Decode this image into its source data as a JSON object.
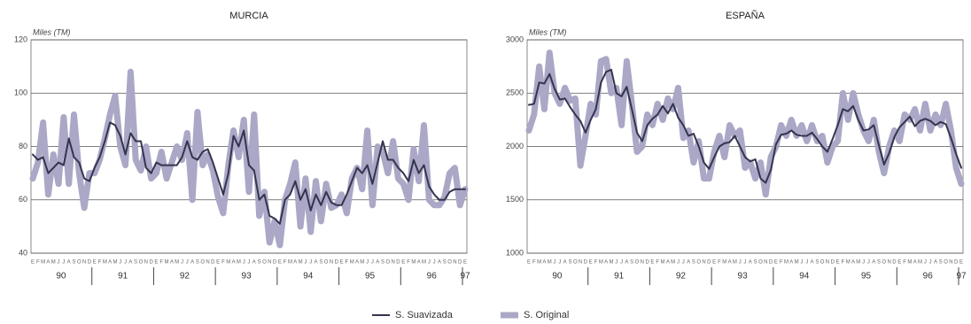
{
  "chart_data": [
    {
      "type": "line",
      "title": "MURCIA",
      "y_label": "Miles (TM)",
      "categories": [
        "E",
        "F",
        "M",
        "A",
        "M",
        "J",
        "J",
        "A",
        "S",
        "O",
        "N",
        "D",
        "E",
        "F",
        "M",
        "A",
        "M",
        "J",
        "J",
        "A",
        "S",
        "O",
        "N",
        "D",
        "E",
        "F",
        "M",
        "A",
        "M",
        "J",
        "J",
        "A",
        "S",
        "O",
        "N",
        "D",
        "E",
        "F",
        "M",
        "A",
        "M",
        "J",
        "J",
        "A",
        "S",
        "O",
        "N",
        "D",
        "E",
        "F",
        "M",
        "A",
        "M",
        "J",
        "J",
        "A",
        "S",
        "O",
        "N",
        "D",
        "E",
        "F",
        "M",
        "A",
        "M",
        "J",
        "J",
        "A",
        "S",
        "O",
        "N",
        "D",
        "E",
        "F",
        "M",
        "A",
        "M",
        "J",
        "J",
        "A",
        "S",
        "O",
        "N",
        "D",
        "E"
      ],
      "years": [
        "90",
        "91",
        "92",
        "93",
        "94",
        "95",
        "96",
        "97"
      ],
      "ylim": [
        40,
        120
      ],
      "yticks": [
        40,
        60,
        80,
        100,
        120
      ],
      "grid": true,
      "series": [
        {
          "name": "S. Original",
          "color": "#aaa8c6",
          "values": [
            68,
            74,
            89,
            62,
            77,
            66,
            91,
            66,
            92,
            70,
            57,
            70,
            70,
            75,
            83,
            92,
            99,
            80,
            73,
            108,
            75,
            71,
            80,
            68,
            70,
            78,
            68,
            74,
            80,
            75,
            85,
            60,
            93,
            73,
            77,
            71,
            61,
            55,
            73,
            86,
            76,
            90,
            63,
            92,
            54,
            63,
            44,
            52,
            43,
            60,
            66,
            74,
            50,
            68,
            48,
            67,
            52,
            66,
            57,
            58,
            62,
            55,
            68,
            72,
            64,
            86,
            58,
            80,
            78,
            70,
            82,
            68,
            66,
            60,
            79,
            67,
            88,
            60,
            58,
            58,
            61,
            70,
            72,
            58,
            64
          ]
        },
        {
          "name": "S. Suavizada",
          "color": "#34344e",
          "values": [
            77,
            75,
            76,
            70,
            72,
            74,
            73,
            83,
            76,
            74,
            68,
            67,
            72,
            76,
            82,
            89,
            88,
            84,
            77,
            85,
            82,
            82,
            72,
            70,
            74,
            73,
            73,
            73,
            73,
            76,
            82,
            76,
            75,
            78,
            79,
            74,
            68,
            62,
            70,
            84,
            80,
            86,
            73,
            71,
            60,
            62,
            54,
            53,
            51,
            60,
            62,
            67,
            60,
            64,
            56,
            62,
            58,
            63,
            59,
            58,
            58,
            62,
            67,
            72,
            70,
            73,
            66,
            74,
            82,
            75,
            75,
            72,
            70,
            67,
            75,
            70,
            73,
            65,
            62,
            60,
            60,
            63,
            64,
            64,
            64
          ]
        }
      ]
    },
    {
      "type": "line",
      "title": "ESPAÑA",
      "y_label": "Miles (TM)",
      "categories": [
        "E",
        "F",
        "M",
        "A",
        "M",
        "J",
        "J",
        "A",
        "S",
        "O",
        "N",
        "D",
        "E",
        "F",
        "M",
        "A",
        "M",
        "J",
        "J",
        "A",
        "S",
        "O",
        "N",
        "D",
        "E",
        "F",
        "M",
        "A",
        "M",
        "J",
        "J",
        "A",
        "S",
        "O",
        "N",
        "D",
        "E",
        "F",
        "M",
        "A",
        "M",
        "J",
        "J",
        "A",
        "S",
        "O",
        "N",
        "D",
        "E",
        "F",
        "M",
        "A",
        "M",
        "J",
        "J",
        "A",
        "S",
        "O",
        "N",
        "D",
        "E",
        "F",
        "M",
        "A",
        "M",
        "J",
        "J",
        "A",
        "S",
        "O",
        "N",
        "D",
        "E",
        "F",
        "M",
        "A",
        "M",
        "J",
        "J",
        "A",
        "S",
        "O",
        "N",
        "D",
        "E"
      ],
      "years": [
        "90",
        "91",
        "92",
        "93",
        "94",
        "95",
        "96",
        "97"
      ],
      "ylim": [
        1000,
        3000
      ],
      "yticks": [
        1000,
        1500,
        2000,
        2500,
        3000
      ],
      "grid": true,
      "series": [
        {
          "name": "S. Original",
          "color": "#aaa8c6",
          "values": [
            2150,
            2300,
            2750,
            2350,
            2880,
            2500,
            2400,
            2550,
            2430,
            2450,
            1820,
            2100,
            2400,
            2300,
            2800,
            2820,
            2500,
            2550,
            2200,
            2800,
            2400,
            1950,
            2000,
            2300,
            2200,
            2400,
            2250,
            2450,
            2350,
            2550,
            2080,
            2150,
            1850,
            2050,
            1700,
            1700,
            1950,
            2100,
            1900,
            2200,
            2100,
            2150,
            1800,
            1850,
            1700,
            1850,
            1550,
            1900,
            2000,
            2200,
            2100,
            2250,
            2100,
            2200,
            2050,
            2200,
            2050,
            2100,
            1850,
            2000,
            2050,
            2500,
            2250,
            2500,
            2300,
            2150,
            2050,
            2250,
            1950,
            1750,
            2000,
            2150,
            2050,
            2300,
            2250,
            2350,
            2150,
            2400,
            2150,
            2300,
            2200,
            2400,
            2150,
            1800,
            1650
          ]
        },
        {
          "name": "S. Suavizada",
          "color": "#34344e",
          "values": [
            2390,
            2400,
            2600,
            2590,
            2680,
            2540,
            2440,
            2450,
            2370,
            2300,
            2240,
            2130,
            2250,
            2350,
            2600,
            2700,
            2720,
            2500,
            2470,
            2560,
            2350,
            2130,
            2050,
            2200,
            2260,
            2300,
            2380,
            2310,
            2400,
            2270,
            2200,
            2100,
            2120,
            2000,
            1850,
            1790,
            1900,
            2000,
            2030,
            2040,
            2100,
            2000,
            1900,
            1860,
            1880,
            1700,
            1660,
            1780,
            2020,
            2110,
            2120,
            2150,
            2110,
            2100,
            2100,
            2130,
            2070,
            2000,
            1950,
            2070,
            2200,
            2350,
            2330,
            2380,
            2250,
            2150,
            2160,
            2200,
            2010,
            1830,
            1940,
            2090,
            2180,
            2230,
            2280,
            2190,
            2240,
            2260,
            2240,
            2200,
            2230,
            2210,
            2080,
            1930,
            1800
          ]
        }
      ]
    }
  ]
}
